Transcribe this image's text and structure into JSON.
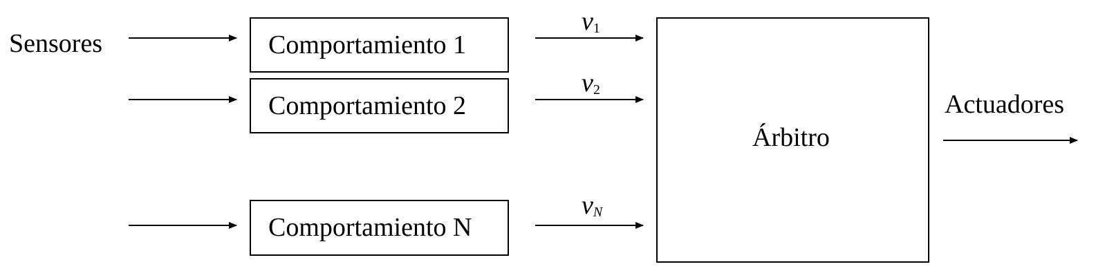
{
  "inputs": {
    "sensors_label": "Sensores"
  },
  "behaviors": [
    {
      "label": "Comportamiento 1",
      "var": "v",
      "sub": "1"
    },
    {
      "label": "Comportamiento 2",
      "var": "v",
      "sub": "2"
    },
    {
      "label": "Comportamiento N",
      "var": "v",
      "sub": "N"
    }
  ],
  "arbiter": {
    "label": "Árbitro"
  },
  "outputs": {
    "actuators_label": "Actuadores"
  }
}
